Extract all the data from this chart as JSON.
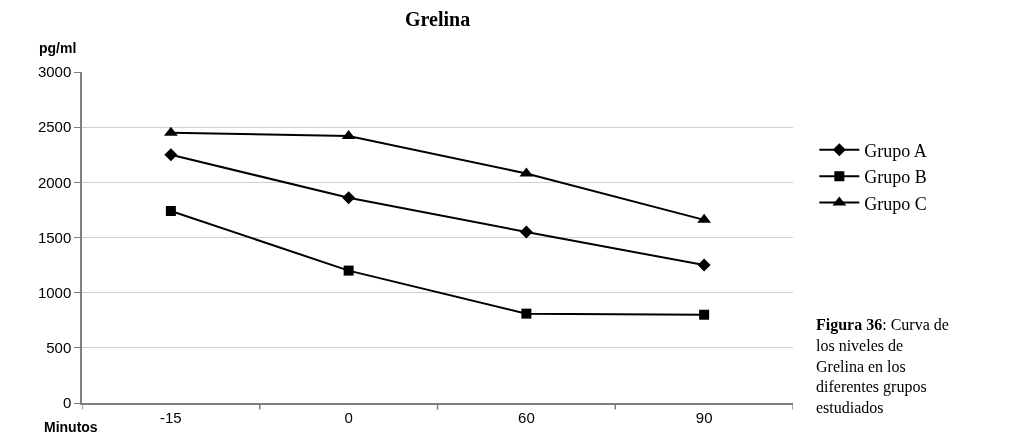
{
  "chart_data": {
    "type": "line",
    "title": "Grelina",
    "xlabel": "Minutos",
    "ylabel": "pg/ml",
    "categories": [
      "-15",
      "0",
      "60",
      "90"
    ],
    "series": [
      {
        "name": "Grupo A",
        "color": "#000000",
        "marker": "diamond",
        "values": [
          2250,
          1860,
          1550,
          1250
        ]
      },
      {
        "name": "Grupo B",
        "color": "#000000",
        "marker": "square",
        "values": [
          1740,
          1200,
          810,
          800
        ]
      },
      {
        "name": "Grupo C",
        "color": "#000000",
        "marker": "triangle",
        "values": [
          2450,
          2420,
          2080,
          1660
        ]
      }
    ],
    "ylim": [
      0,
      3000
    ],
    "yticks": [
      0,
      500,
      1000,
      1500,
      2000,
      2500,
      3000
    ],
    "grid": "y",
    "legend": "right",
    "line_style": "solid",
    "annotations": [
      "Figura 36: Curva de los niveles de Grelina en los diferentes grupos estudiados"
    ]
  }
}
